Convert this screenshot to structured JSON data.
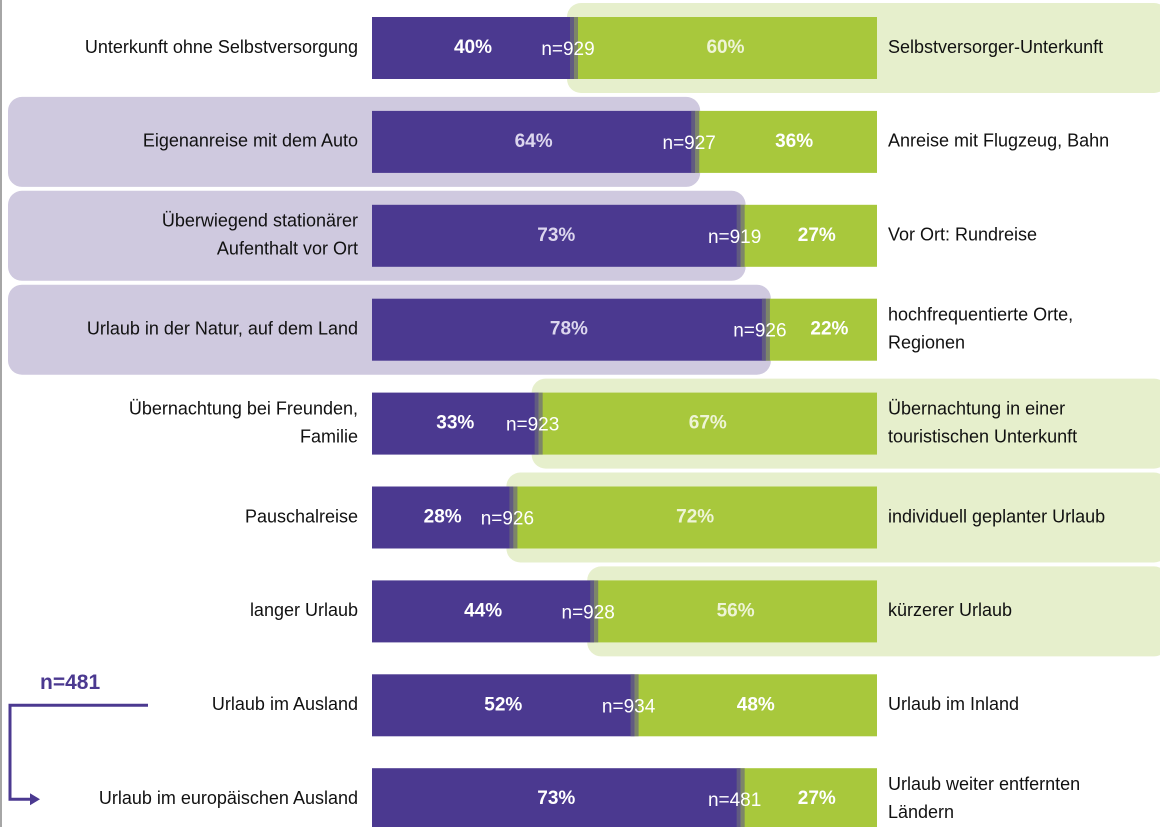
{
  "chart_data": {
    "type": "bar",
    "orientation": "horizontal",
    "stacked": true,
    "categories": [
      [
        "Unterkunft ohne Selbstversorgung"
      ],
      [
        "Eigenanreise mit dem Auto"
      ],
      [
        "Überwiegend stationärer",
        "Aufenthalt vor Ort"
      ],
      [
        "Urlaub in der Natur, auf dem Land"
      ],
      [
        "Übernachtung bei Freunden,",
        "Familie"
      ],
      [
        "Pauschalreise"
      ],
      [
        "langer Urlaub"
      ],
      [
        "Urlaub im Ausland"
      ],
      [
        "Urlaub im europäischen Ausland"
      ]
    ],
    "right_categories": [
      [
        "Selbstversorger-Unterkunft"
      ],
      [
        "Anreise mit Flugzeug, Bahn"
      ],
      [
        "Vor Ort: Rundreise"
      ],
      [
        "hochfrequentierte Orte,",
        "Regionen"
      ],
      [
        "Übernachtung in einer",
        "touristischen Unterkunft"
      ],
      [
        "individuell geplanter Urlaub"
      ],
      [
        "kürzerer Urlaub"
      ],
      [
        "Urlaub im Inland"
      ],
      [
        "Urlaub weiter entfernten",
        "Ländern"
      ]
    ],
    "series": [
      {
        "color": "#4b3990",
        "values": [
          40,
          64,
          73,
          78,
          33,
          28,
          44,
          52,
          73
        ],
        "value_labels": [
          "40%",
          "64%",
          "73%",
          "78%",
          "33%",
          "28%",
          "44%",
          "52%",
          "73%"
        ]
      },
      {
        "color": "#a8c83c",
        "values": [
          60,
          36,
          27,
          22,
          67,
          72,
          56,
          48,
          27
        ],
        "value_labels": [
          "60%",
          "36%",
          "27%",
          "22%",
          "67%",
          "72%",
          "56%",
          "48%",
          "27%"
        ]
      }
    ],
    "n_labels": [
      "n=929",
      "n=927",
      "n=919",
      "n=926",
      "n=923",
      "n=926",
      "n=928",
      "n=934",
      "n=481"
    ],
    "highlight": [
      "right",
      "left",
      "left",
      "left",
      "right",
      "right",
      "right",
      null,
      null
    ],
    "annotation": "n=481",
    "xlim": [
      0,
      100
    ]
  }
}
